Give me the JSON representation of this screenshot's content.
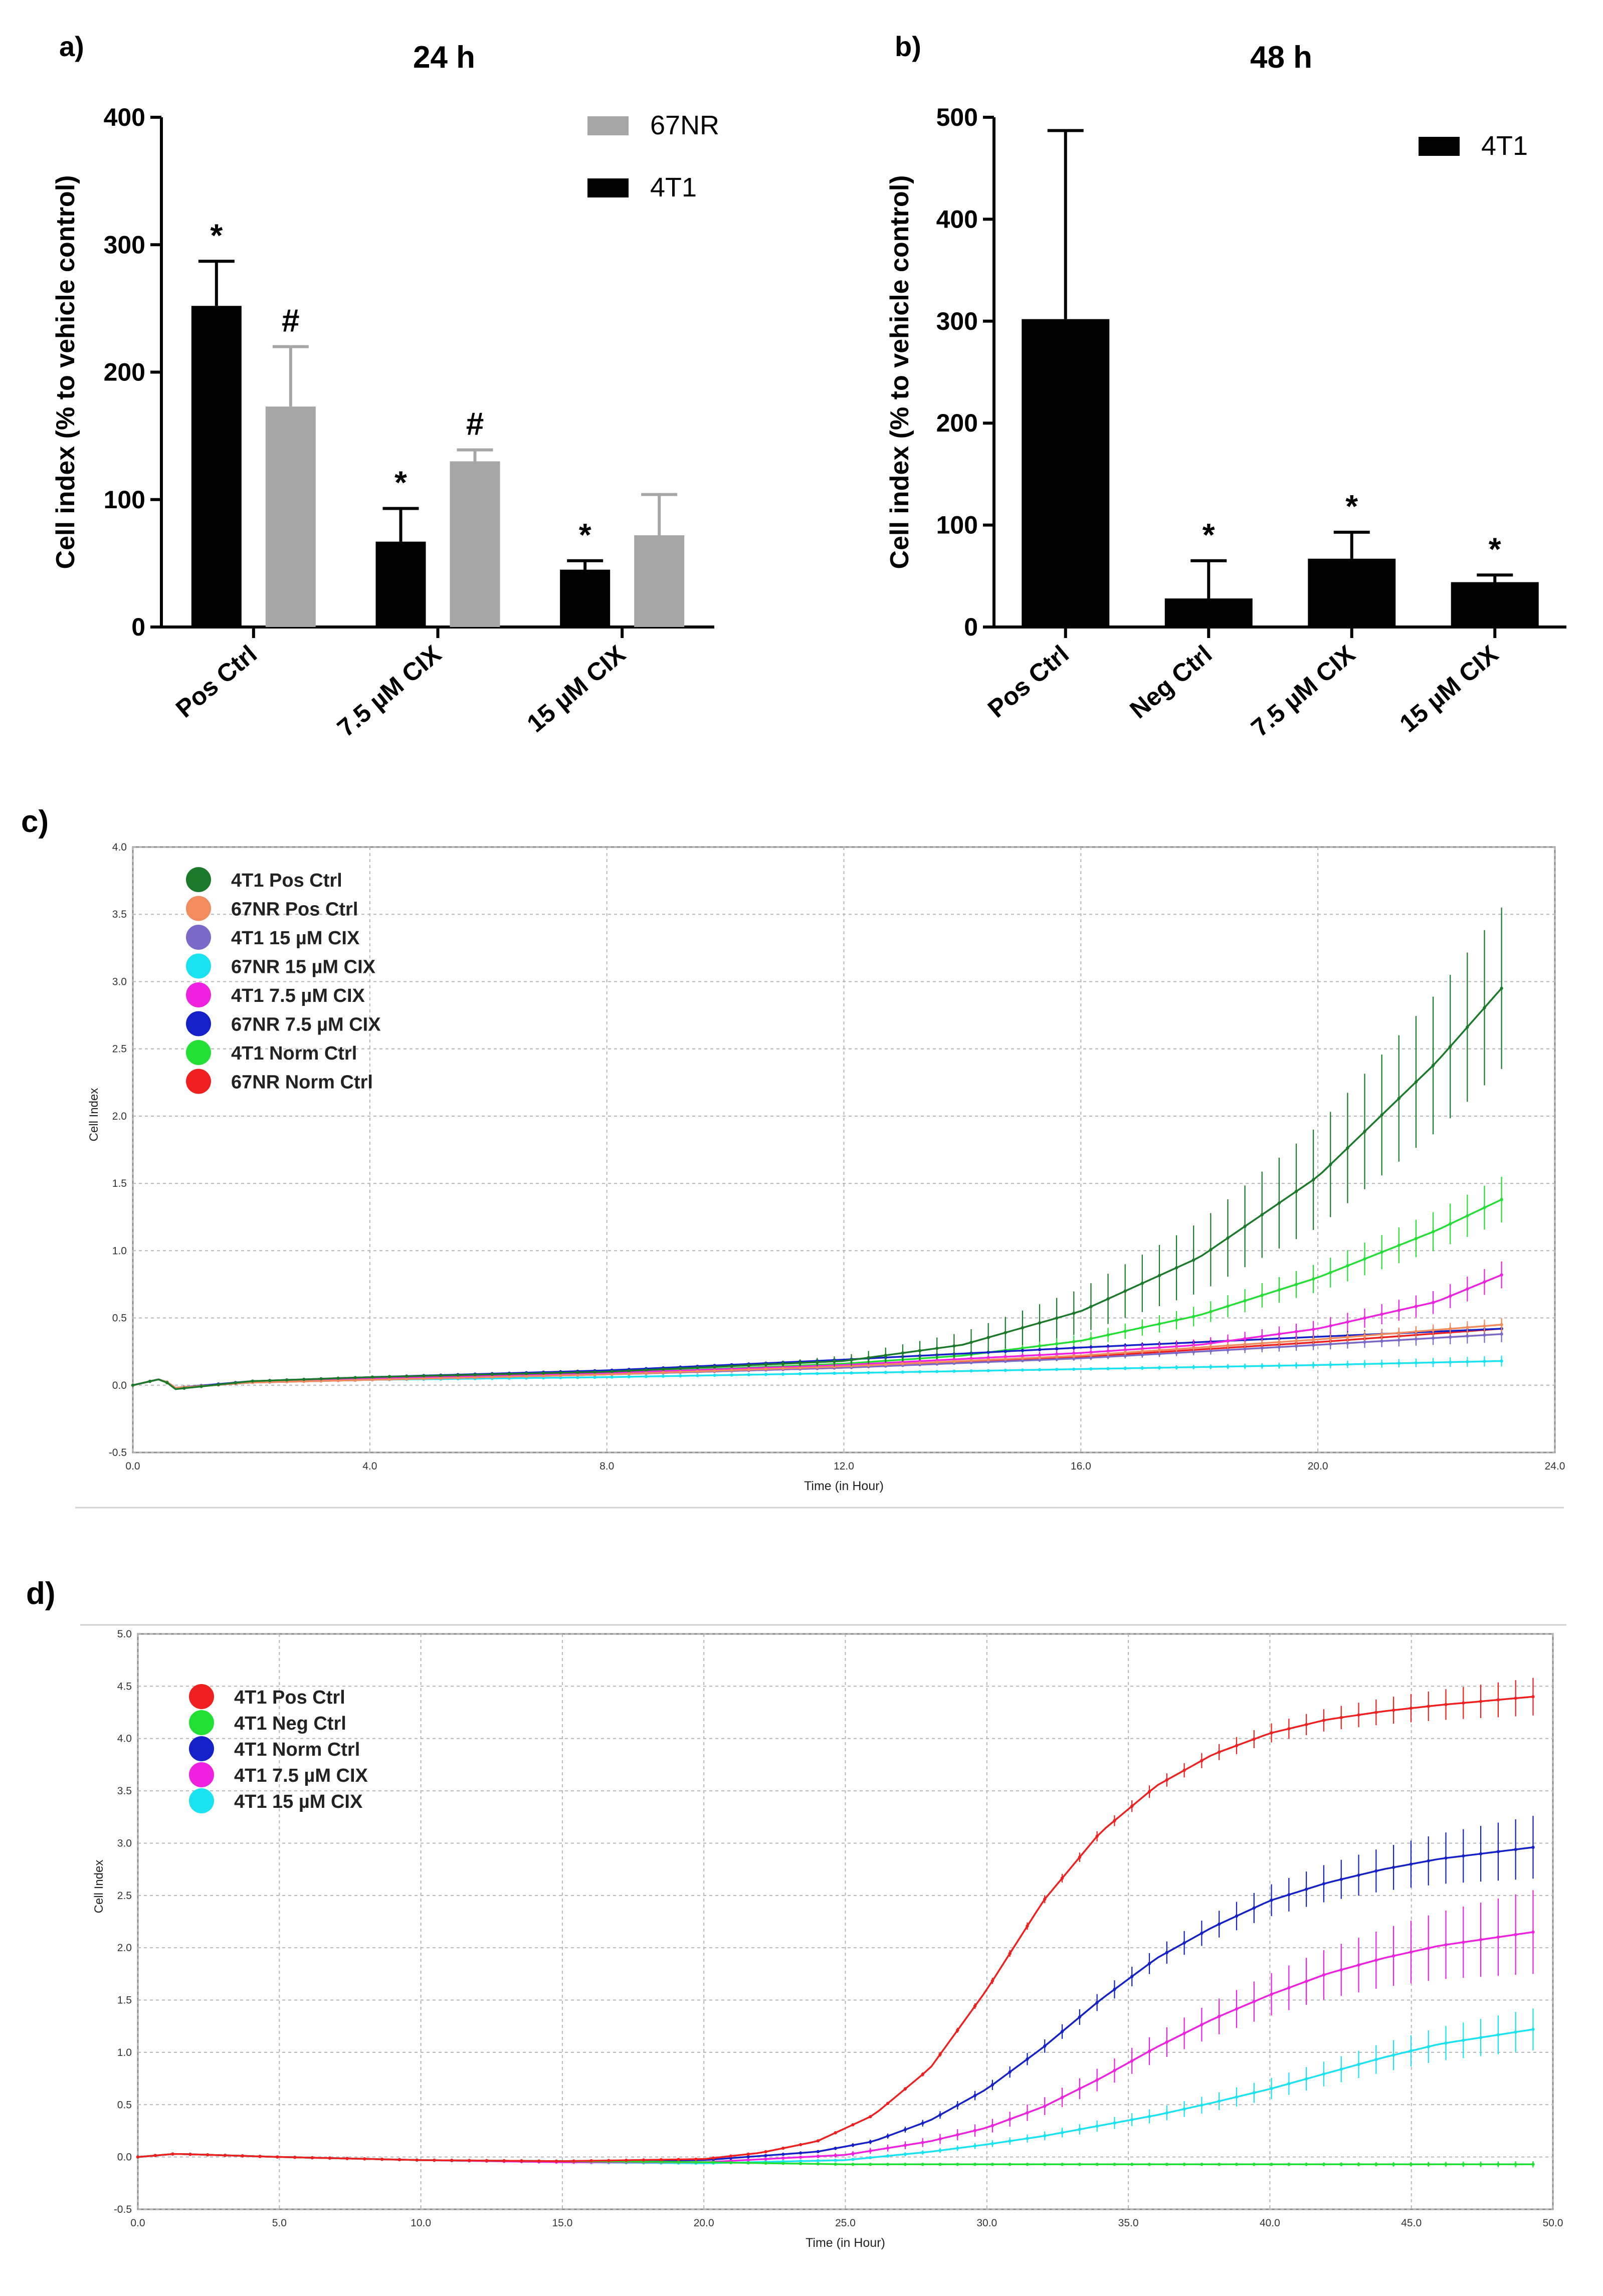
{
  "panels": {
    "a": {
      "label": "a)"
    },
    "b": {
      "label": "b)"
    },
    "c": {
      "label": "c)"
    },
    "d": {
      "label": "d)"
    }
  },
  "colors": {
    "black": "#000000",
    "gray": "#a6a6a6",
    "darkgreen": "#1a7a2a",
    "salmon": "#f28c5e",
    "purple": "#7b68c8",
    "cyan": "#19e3f0",
    "magenta": "#f020e0",
    "blue": "#1420c8",
    "green": "#22e033",
    "red": "#f02020"
  },
  "chart_data": [
    {
      "id": "a",
      "type": "bar",
      "title": "24 h",
      "ylabel": "Cell index (% to vehicle control)",
      "xlabel": "",
      "ylim": [
        0,
        400
      ],
      "yticks": [
        "0",
        "100",
        "200",
        "300",
        "400"
      ],
      "categories": [
        "Pos Ctrl",
        "7.5 µM CIX",
        "15 µM CIX"
      ],
      "series": [
        {
          "name": "4T1",
          "color": "#000000",
          "values": [
            252,
            67,
            45
          ],
          "errors": [
            35,
            26,
            7
          ],
          "marks": [
            "*",
            "*",
            "*"
          ]
        },
        {
          "name": "67NR",
          "color": "#a6a6a6",
          "values": [
            173,
            130,
            72
          ],
          "errors": [
            47,
            9,
            32
          ],
          "marks": [
            "#",
            "#",
            ""
          ]
        }
      ],
      "legend": [
        {
          "name": "67NR",
          "color": "#a6a6a6"
        },
        {
          "name": "4T1",
          "color": "#000000"
        }
      ],
      "legend_position": "top-right"
    },
    {
      "id": "b",
      "type": "bar",
      "title": "48 h",
      "ylabel": "Cell index (% to vehicle control)",
      "xlabel": "",
      "ylim": [
        0,
        500
      ],
      "yticks": [
        "0",
        "100",
        "200",
        "300",
        "400",
        "500"
      ],
      "categories": [
        "Pos Ctrl",
        "Neg Ctrl",
        "7.5 µM CIX",
        "15 µM CIX"
      ],
      "series": [
        {
          "name": "4T1",
          "color": "#000000",
          "values": [
            302,
            28,
            67,
            44
          ],
          "errors": [
            185,
            37,
            26,
            7
          ],
          "marks": [
            "",
            "*",
            "*",
            "*"
          ]
        }
      ],
      "legend": [
        {
          "name": "4T1",
          "color": "#000000"
        }
      ],
      "legend_position": "top-right"
    },
    {
      "id": "c",
      "type": "line",
      "title": "",
      "xlabel": "Time (in Hour)",
      "ylabel": "Cell Index",
      "xlim": [
        0,
        24
      ],
      "ylim": [
        -0.5,
        4.0
      ],
      "xticks": [
        "0.0",
        "4.0",
        "8.0",
        "12.0",
        "16.0",
        "20.0",
        "24.0"
      ],
      "yticks": [
        "-0.5",
        "0.0",
        "0.5",
        "1.0",
        "1.5",
        "2.0",
        "2.5",
        "3.0",
        "3.5",
        "4.0"
      ],
      "x_end": 23.1,
      "legend_position": "top-left",
      "series": [
        {
          "name": "4T1 Pos Ctrl",
          "color": "#1a7a2a",
          "x": [
            0,
            0.5,
            0.7,
            2,
            4,
            8,
            12,
            14,
            16,
            18,
            20,
            22,
            23.1
          ],
          "y": [
            0,
            0.05,
            -0.03,
            0.03,
            0.06,
            0.1,
            0.18,
            0.3,
            0.55,
            0.95,
            1.55,
            2.4,
            2.95
          ],
          "err": 0.6
        },
        {
          "name": "67NR Pos Ctrl",
          "color": "#f28c5e",
          "x": [
            0,
            0.5,
            0.7,
            2,
            4,
            8,
            12,
            16,
            20,
            23.1
          ],
          "y": [
            0,
            0.05,
            -0.02,
            0.02,
            0.04,
            0.08,
            0.14,
            0.22,
            0.34,
            0.45
          ],
          "err": 0.05
        },
        {
          "name": "4T1 15 µM CIX",
          "color": "#7b68c8",
          "x": [
            0,
            0.5,
            0.7,
            2,
            4,
            8,
            12,
            16,
            20,
            23.1
          ],
          "y": [
            0,
            0.05,
            -0.02,
            0.02,
            0.04,
            0.08,
            0.13,
            0.2,
            0.3,
            0.38
          ],
          "err": 0.06
        },
        {
          "name": "67NR 15 µM CIX",
          "color": "#19e3f0",
          "x": [
            0,
            0.5,
            0.7,
            2,
            4,
            8,
            12,
            16,
            20,
            23.1
          ],
          "y": [
            0,
            0.05,
            -0.02,
            0.02,
            0.04,
            0.06,
            0.09,
            0.12,
            0.15,
            0.18
          ],
          "err": 0.04
        },
        {
          "name": "4T1 7.5 µM CIX",
          "color": "#f020e0",
          "x": [
            0,
            0.5,
            0.7,
            2,
            4,
            8,
            12,
            16,
            18,
            20,
            22,
            23.1
          ],
          "y": [
            0,
            0.05,
            -0.02,
            0.02,
            0.05,
            0.09,
            0.15,
            0.24,
            0.3,
            0.42,
            0.62,
            0.82
          ],
          "err": 0.1
        },
        {
          "name": "67NR 7.5 µM CIX",
          "color": "#1420c8",
          "x": [
            0,
            0.5,
            0.7,
            2,
            4,
            8,
            12,
            16,
            20,
            23.1
          ],
          "y": [
            0,
            0.05,
            -0.02,
            0.03,
            0.06,
            0.11,
            0.19,
            0.28,
            0.36,
            0.42
          ],
          "err": 0.05
        },
        {
          "name": "4T1 Norm Ctrl",
          "color": "#22e033",
          "x": [
            0,
            0.5,
            0.7,
            2,
            4,
            8,
            12,
            14,
            16,
            18,
            20,
            22,
            23.1
          ],
          "y": [
            0,
            0.05,
            -0.03,
            0.03,
            0.05,
            0.09,
            0.16,
            0.22,
            0.33,
            0.52,
            0.8,
            1.15,
            1.38
          ],
          "err": 0.17
        },
        {
          "name": "67NR Norm Ctrl",
          "color": "#f02020",
          "x": [
            0,
            0.5,
            0.7,
            2,
            4,
            8,
            12,
            16,
            20,
            23.1
          ],
          "y": [
            0,
            0.05,
            -0.02,
            0.02,
            0.04,
            0.08,
            0.13,
            0.21,
            0.32,
            0.42
          ],
          "err": 0.04
        }
      ]
    },
    {
      "id": "d",
      "type": "line",
      "title": "",
      "xlabel": "Time (in Hour)",
      "ylabel": "Cell Index",
      "xlim": [
        0,
        50
      ],
      "ylim": [
        -0.5,
        5.0
      ],
      "xticks": [
        "0.0",
        "5.0",
        "10.0",
        "15.0",
        "20.0",
        "25.0",
        "30.0",
        "35.0",
        "40.0",
        "45.0",
        "50.0"
      ],
      "yticks": [
        "-0.5",
        "0.0",
        "0.5",
        "1.0",
        "1.5",
        "2.0",
        "2.5",
        "3.0",
        "3.5",
        "4.0",
        "4.5",
        "5.0"
      ],
      "x_end": 49.3,
      "legend_position": "top-left",
      "series": [
        {
          "name": "4T1 Pos Ctrl",
          "color": "#f02020",
          "x": [
            0,
            1.3,
            5,
            10,
            15,
            20,
            22,
            24,
            26,
            28,
            30,
            32,
            34,
            36,
            38,
            40,
            42,
            44,
            46,
            49.3
          ],
          "y": [
            0,
            0.03,
            0,
            -0.03,
            -0.04,
            -0.02,
            0.04,
            0.15,
            0.4,
            0.85,
            1.6,
            2.45,
            3.1,
            3.55,
            3.85,
            4.05,
            4.18,
            4.26,
            4.32,
            4.4
          ],
          "err": 0.18
        },
        {
          "name": "4T1 Neg Ctrl",
          "color": "#22e033",
          "x": [
            0,
            1.3,
            5,
            10,
            15,
            20,
            25,
            30,
            35,
            40,
            45,
            49.3
          ],
          "y": [
            0,
            0.03,
            0,
            -0.03,
            -0.04,
            -0.05,
            -0.07,
            -0.07,
            -0.07,
            -0.07,
            -0.07,
            -0.07
          ],
          "err": 0.03
        },
        {
          "name": "4T1 Norm Ctrl",
          "color": "#1420c8",
          "x": [
            0,
            1.3,
            5,
            10,
            15,
            20,
            24,
            26,
            28,
            30,
            32,
            34,
            36,
            38,
            40,
            42,
            44,
            46,
            49.3
          ],
          "y": [
            0,
            0.03,
            0,
            -0.03,
            -0.04,
            -0.03,
            0.05,
            0.15,
            0.35,
            0.65,
            1.05,
            1.5,
            1.9,
            2.2,
            2.45,
            2.62,
            2.75,
            2.85,
            2.96
          ],
          "err": 0.3
        },
        {
          "name": "4T1 7.5 µM CIX",
          "color": "#f020e0",
          "x": [
            0,
            1.3,
            5,
            10,
            15,
            20,
            25,
            28,
            30,
            32,
            34,
            36,
            38,
            40,
            42,
            44,
            46,
            49.3
          ],
          "y": [
            0,
            0.03,
            0,
            -0.03,
            -0.05,
            -0.05,
            0.02,
            0.15,
            0.28,
            0.48,
            0.75,
            1.05,
            1.32,
            1.55,
            1.75,
            1.9,
            2.02,
            2.15
          ],
          "err": 0.4
        },
        {
          "name": "4T1 15 µM CIX",
          "color": "#19e3f0",
          "x": [
            0,
            1.3,
            5,
            10,
            15,
            20,
            25,
            28,
            30,
            32,
            34,
            36,
            38,
            40,
            42,
            44,
            46,
            49.3
          ],
          "y": [
            0,
            0.03,
            0,
            -0.03,
            -0.05,
            -0.06,
            -0.03,
            0.05,
            0.12,
            0.2,
            0.3,
            0.4,
            0.52,
            0.65,
            0.8,
            0.95,
            1.08,
            1.22
          ],
          "err": 0.2
        }
      ]
    }
  ]
}
